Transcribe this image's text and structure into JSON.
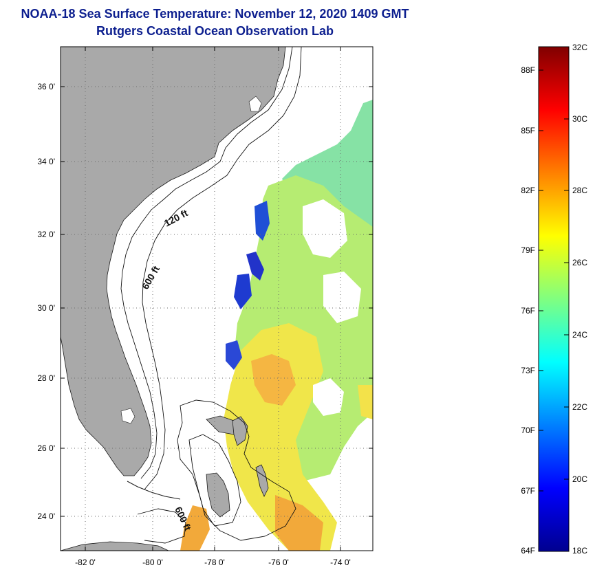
{
  "header": {
    "title": "NOAA-18 Sea Surface Temperature:  November 12, 2020 1409 GMT",
    "subtitle": "Rutgers Coastal Ocean Observation Lab"
  },
  "map": {
    "lat_labels": [
      "36 0'",
      "34 0'",
      "32 0'",
      "30 0'",
      "28 0'",
      "26 0'",
      "24 0'"
    ],
    "lon_labels": [
      "-82 0'",
      "-80 0'",
      "-78 0'",
      "-76 0'",
      "-74 0'"
    ],
    "contours": [
      {
        "label": "120 ft"
      },
      {
        "label": "600 ft"
      },
      {
        "label": "600 ft"
      }
    ],
    "colors": {
      "land": "#a9a9a9",
      "ocean_nodata": "#ffffff",
      "grid": "#6b6b6b"
    }
  },
  "colorbar": {
    "fahrenheit_labels": [
      "88F",
      "85F",
      "82F",
      "79F",
      "76F",
      "73F",
      "70F",
      "67F",
      "64F"
    ],
    "celsius_labels": [
      "32C",
      "30C",
      "28C",
      "26C",
      "24C",
      "22C",
      "20C",
      "18C"
    ],
    "range_c": [
      18,
      32
    ],
    "colors": [
      "#00008f",
      "#0000ff",
      "#0080ff",
      "#00ffff",
      "#80ff80",
      "#ffff00",
      "#ff8000",
      "#ff0000",
      "#800000"
    ]
  }
}
